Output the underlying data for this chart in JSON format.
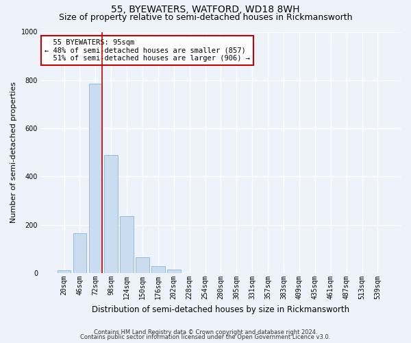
{
  "title": "55, BYEWATERS, WATFORD, WD18 8WH",
  "subtitle": "Size of property relative to semi-detached houses in Rickmansworth",
  "xlabel": "Distribution of semi-detached houses by size in Rickmansworth",
  "ylabel": "Number of semi-detached properties",
  "footer_line1": "Contains HM Land Registry data © Crown copyright and database right 2024.",
  "footer_line2": "Contains public sector information licensed under the Open Government Licence v3.0.",
  "bar_labels": [
    "20sqm",
    "46sqm",
    "72sqm",
    "98sqm",
    "124sqm",
    "150sqm",
    "176sqm",
    "202sqm",
    "228sqm",
    "254sqm",
    "280sqm",
    "305sqm",
    "331sqm",
    "357sqm",
    "383sqm",
    "409sqm",
    "435sqm",
    "461sqm",
    "487sqm",
    "513sqm",
    "539sqm"
  ],
  "bar_values": [
    12,
    165,
    785,
    490,
    237,
    65,
    30,
    14,
    0,
    0,
    0,
    0,
    0,
    0,
    0,
    0,
    0,
    0,
    0,
    0,
    0
  ],
  "bar_color": "#c9dcf0",
  "bar_edge_color": "#8ab4d8",
  "background_color": "#eef2fb",
  "grid_color": "#ffffff",
  "property_label": "55 BYEWATERS: 95sqm",
  "pct_smaller": 48,
  "pct_smaller_count": 857,
  "pct_larger": 51,
  "pct_larger_count": 906,
  "annotation_box_color": "#ffffff",
  "annotation_box_edge": "#cc0000",
  "vline_color": "#cc0000",
  "vline_x_index": 2.43,
  "ylim": [
    0,
    1000
  ],
  "title_fontsize": 10,
  "subtitle_fontsize": 9,
  "xlabel_fontsize": 8.5,
  "ylabel_fontsize": 8,
  "tick_fontsize": 7,
  "annotation_fontsize": 7.5,
  "footer_fontsize": 6
}
